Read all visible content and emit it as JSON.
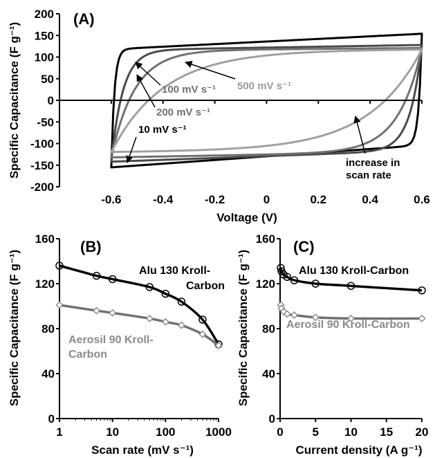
{
  "colors": {
    "axis": "#000000",
    "black": "#000000",
    "dark_gray": "#4a4a4a",
    "mid_gray": "#707070",
    "light_gray": "#9a9a9a",
    "lighter_gray": "#a0a0a0",
    "marker_fill": "#ffffff",
    "gray_marker_stroke": "#8a8a8a"
  },
  "chart_data": [
    {
      "panel": "(A)",
      "type": "line",
      "xlabel": "Voltage (V)",
      "ylabel": "Specific Capacitance (F g⁻¹)",
      "xlim": [
        -0.8,
        0.6
      ],
      "ylim": [
        -200,
        200
      ],
      "x_ticks": [
        -0.6,
        -0.4,
        -0.2,
        0,
        0.2,
        0.4,
        0.6
      ],
      "x_tick_labels": [
        "-0.6",
        "-0.4",
        "-0.2",
        "0",
        "0.2",
        "0.4",
        "0.6"
      ],
      "y_ticks": [
        -200,
        -150,
        -100,
        -50,
        0,
        50,
        100,
        150,
        200
      ],
      "y_tick_labels": [
        "-200",
        "-150",
        "-100",
        "-50",
        "0",
        "50",
        "100",
        "150",
        "200"
      ],
      "grid": false,
      "series": [
        {
          "name": "10 mV s⁻¹",
          "color": "#000000",
          "v_min": -0.6,
          "v_max": 0.6,
          "upper": [
            118,
            154
          ],
          "lower": [
            -155,
            -104
          ],
          "tau": 0.012
        },
        {
          "name": "100 mV s⁻¹",
          "color": "#4a4a4a",
          "v_min": -0.6,
          "v_max": 0.6,
          "upper": [
            116,
            128
          ],
          "lower": [
            -142,
            -116
          ],
          "tau": 0.045
        },
        {
          "name": "200 mV s⁻¹",
          "color": "#707070",
          "v_min": -0.6,
          "v_max": 0.6,
          "upper": [
            115,
            121
          ],
          "lower": [
            -132,
            -119
          ],
          "tau": 0.09
        },
        {
          "name": "500 mV s⁻¹",
          "color": "#a0a0a0",
          "v_min": -0.6,
          "v_max": 0.6,
          "upper": [
            113,
            118
          ],
          "lower": [
            -120,
            -114
          ],
          "tau": 0.2
        }
      ],
      "annotations": {
        "label_10": "10 mV s⁻¹",
        "label_100": "100 mV s⁻¹",
        "label_200": "200 mV s⁻¹",
        "label_500": "500 mV s⁻¹",
        "increase_line1": "increase in",
        "increase_line2": "scan rate"
      }
    },
    {
      "panel": "(B)",
      "type": "line",
      "xlabel": "Scan rate (mV s⁻¹)",
      "ylabel": "Specific Capacitance (F g⁻¹)",
      "x_scale": "log",
      "xlim": [
        1,
        1000
      ],
      "ylim": [
        0,
        160
      ],
      "x_ticks": [
        1,
        10,
        100,
        1000
      ],
      "x_tick_labels": [
        "1",
        "10",
        "100",
        "1000"
      ],
      "y_ticks": [
        0,
        40,
        80,
        120,
        160
      ],
      "y_tick_labels": [
        "0",
        "40",
        "80",
        "120",
        "160"
      ],
      "grid": false,
      "series": [
        {
          "name": "Alu 130 Kroll-Carbon",
          "color": "#000000",
          "marker": "circle",
          "x": [
            1,
            5,
            10,
            50,
            100,
            200,
            500,
            1000
          ],
          "y": [
            136,
            127,
            124,
            117,
            111,
            104,
            88,
            66
          ]
        },
        {
          "name": "Aerosil 90 Kroll-Carbon",
          "color": "#707070",
          "marker": "diamond",
          "x": [
            1,
            5,
            10,
            50,
            100,
            200,
            500,
            1000
          ],
          "y": [
            101,
            96,
            94,
            89,
            86,
            83,
            75,
            65
          ]
        }
      ],
      "labels": {
        "alu_line1": "Alu 130 Kroll-",
        "alu_line2": "Carbon",
        "aerosil_line1": "Aerosil 90 Kroll-",
        "aerosil_line2": "Carbon"
      }
    },
    {
      "panel": "(C)",
      "type": "line",
      "xlabel": "Current density (A g⁻¹)",
      "ylabel": "Specific Capacitance (F g⁻¹)",
      "xlim": [
        0,
        20
      ],
      "ylim": [
        0,
        160
      ],
      "x_ticks": [
        0,
        5,
        10,
        15,
        20
      ],
      "x_tick_labels": [
        "0",
        "5",
        "10",
        "15",
        "20"
      ],
      "y_ticks": [
        0,
        40,
        80,
        120,
        160
      ],
      "y_tick_labels": [
        "0",
        "40",
        "80",
        "120",
        "160"
      ],
      "grid": false,
      "series": [
        {
          "name": "Alu 130 Kroll-Carbon",
          "color": "#000000",
          "marker": "circle",
          "x": [
            0.1,
            0.2,
            0.5,
            1,
            2,
            5,
            10,
            20
          ],
          "y": [
            134,
            131,
            128,
            126,
            123,
            120,
            118,
            114
          ]
        },
        {
          "name": "Aerosil 90 Kroll-Carbon",
          "color": "#707070",
          "marker": "diamond",
          "x": [
            0.1,
            0.2,
            0.5,
            1,
            2,
            5,
            10,
            20
          ],
          "y": [
            101,
            98,
            95,
            93,
            92,
            90,
            89,
            89
          ]
        }
      ],
      "labels": {
        "alu": "Alu 130 Kroll-Carbon",
        "aerosil": "Aerosil 90 Kroll-Carbon"
      }
    }
  ]
}
